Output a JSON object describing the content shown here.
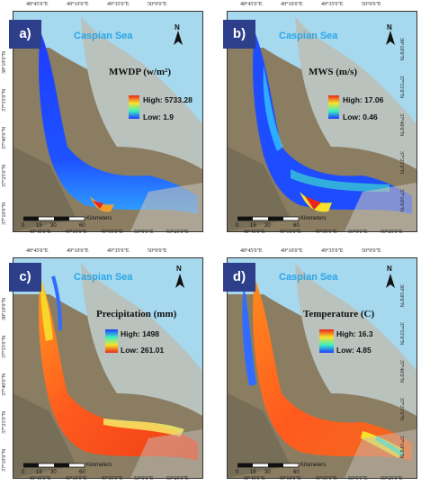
{
  "ticks": {
    "lon": [
      "48°45'0\"E",
      "49°10'0\"E",
      "49°35'0\"E",
      "50°0'0\"E",
      "50°25'0\"E"
    ],
    "lat": [
      "38°10'0\"N",
      "37°55'0\"N",
      "37°40'0\"N",
      "37°25'0\"N",
      "37°10'0\"N",
      "36°55'0\"N"
    ]
  },
  "sea_label": "Caspian Sea",
  "north_label": "N",
  "scale": {
    "values": [
      "0",
      "15",
      "30",
      "60"
    ],
    "unit": "Kilometers"
  },
  "panels": [
    {
      "letter": "a)",
      "title": "MWDP (w/m²)",
      "high": "High: 5733.28",
      "low": "Low: 1.9",
      "scheme": "mwdp"
    },
    {
      "letter": "b)",
      "title": "MWS (m/s)",
      "high": "High: 17.06",
      "low": "Low: 0.46",
      "scheme": "mws"
    },
    {
      "letter": "c)",
      "title": "Precipitation (mm)",
      "high": "High: 1498",
      "low": "Low: 261.01",
      "scheme": "prec"
    },
    {
      "letter": "d)",
      "title": "Temperature (C)",
      "high": "High: 16.3",
      "low": "Low: 4.85",
      "scheme": "temp"
    }
  ],
  "colors": {
    "sea": "#a6d8ee",
    "caspian_gray": "#b9c2bd",
    "terrain": "#9d8f6e",
    "label_bg": "#2d3f8a"
  }
}
